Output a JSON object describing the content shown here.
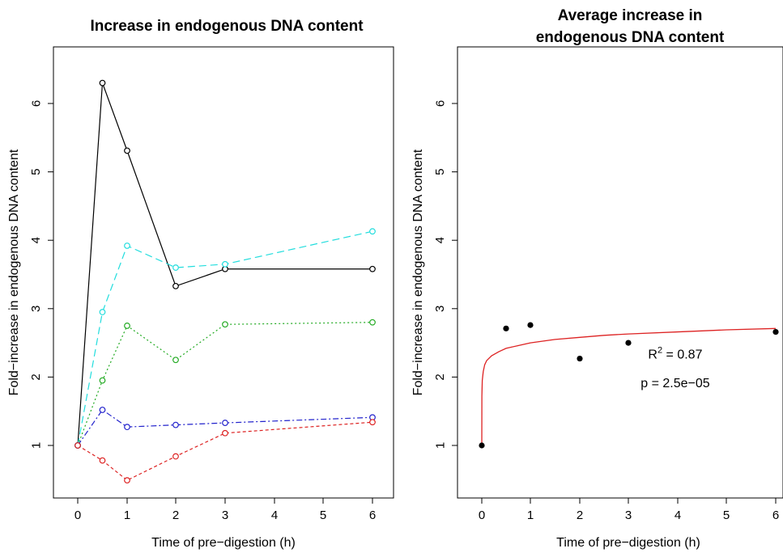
{
  "chart_data": [
    {
      "type": "line",
      "title_lines": [
        "Increase in endogenous DNA content"
      ],
      "xlabel": "Time of pre−digestion (h)",
      "ylabel": "Fold−increase in endogenous DNA content",
      "x": [
        0,
        0.5,
        1,
        2,
        3,
        6
      ],
      "x_tick_values": [
        0,
        1,
        2,
        3,
        4,
        5,
        6
      ],
      "x_tick_labels": [
        "0",
        "1",
        "2",
        "3",
        "4",
        "5",
        "6"
      ],
      "y_tick_values": [
        1,
        2,
        3,
        4,
        5,
        6
      ],
      "y_tick_labels": [
        "1",
        "2",
        "3",
        "4",
        "5",
        "6"
      ],
      "xlim": [
        -0.2,
        6.2
      ],
      "ylim": [
        0.75,
        6.55
      ],
      "x_scale": "log1p-like (positions 0,0.5,1,2,3,4,5,6 spaced unevenly)",
      "series": [
        {
          "color": "#000000",
          "dash": "",
          "values": [
            1.0,
            6.3,
            5.31,
            3.33,
            3.58,
            3.58
          ]
        },
        {
          "color": "#22dddd",
          "dash": "9,5",
          "values": [
            1.0,
            2.95,
            3.92,
            3.6,
            3.65,
            4.13
          ]
        },
        {
          "color": "#22aa22",
          "dash": "2,3",
          "values": [
            1.0,
            1.95,
            2.75,
            2.25,
            2.77,
            2.8
          ]
        },
        {
          "color": "#2222cc",
          "dash": "7,3,2,3",
          "values": [
            1.0,
            1.52,
            1.27,
            1.3,
            1.33,
            1.41
          ]
        },
        {
          "color": "#dd2222",
          "dash": "4,3",
          "values": [
            1.0,
            0.78,
            0.49,
            0.84,
            1.18,
            1.34
          ]
        }
      ]
    },
    {
      "type": "scatter",
      "title_lines": [
        "Average increase in",
        "endogenous DNA content"
      ],
      "xlabel": "Time of pre−digestion (h)",
      "ylabel": "Fold−increase in endogenous DNA content",
      "x": [
        0,
        0.5,
        1,
        2,
        3,
        6
      ],
      "values": [
        1.0,
        2.71,
        2.76,
        2.27,
        2.5,
        2.66
      ],
      "x_tick_values": [
        0,
        1,
        2,
        3,
        4,
        5,
        6
      ],
      "x_tick_labels": [
        "0",
        "1",
        "2",
        "3",
        "4",
        "5",
        "6"
      ],
      "y_tick_values": [
        1,
        2,
        3,
        4,
        5,
        6
      ],
      "y_tick_labels": [
        "1",
        "2",
        "3",
        "4",
        "5",
        "6"
      ],
      "xlim": [
        -0.2,
        6.2
      ],
      "ylim": [
        0.75,
        6.55
      ],
      "point_color": "#000000",
      "fit": {
        "color": "#dd2222",
        "x": [
          0,
          0.002,
          0.01,
          0.03,
          0.06,
          0.1,
          0.2,
          0.35,
          0.5,
          0.75,
          1,
          1.5,
          2,
          2.5,
          3,
          4,
          5,
          6
        ],
        "y": [
          1.0,
          1.72,
          1.95,
          2.08,
          2.18,
          2.24,
          2.31,
          2.37,
          2.42,
          2.46,
          2.5,
          2.55,
          2.58,
          2.61,
          2.63,
          2.66,
          2.69,
          2.71
        ]
      },
      "annotations": [
        {
          "prefix": "R",
          "sup": "2",
          "suffix": " = 0.87",
          "x": 3.95,
          "y": 2.27
        },
        {
          "text": "p = 2.5e−05",
          "x": 3.95,
          "y": 1.85
        }
      ]
    }
  ]
}
